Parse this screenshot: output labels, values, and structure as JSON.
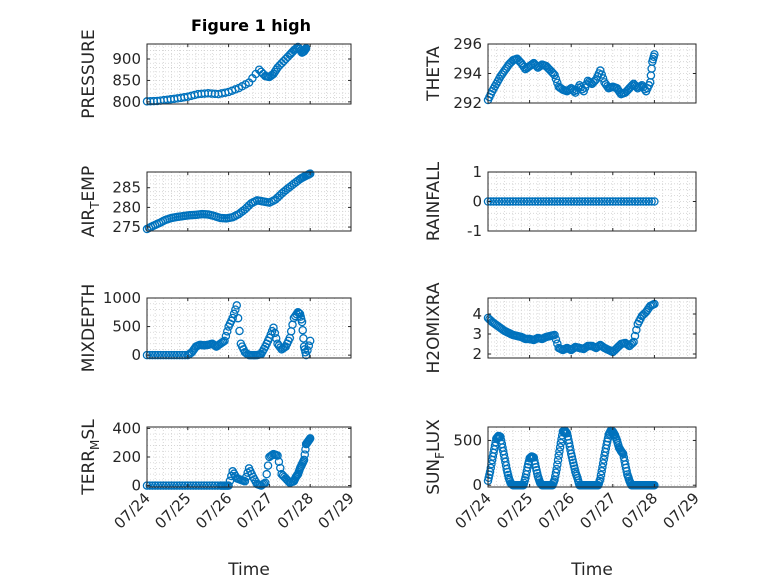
{
  "figure": {
    "title": "Figure 1 high"
  },
  "colors": {
    "marker": "#0072BD",
    "grid": "#d0d0d0",
    "axis": "#262626"
  },
  "chart_data": [
    {
      "id": "pressure",
      "type": "scatter",
      "ylabel": "PRESSURE",
      "title": "Figure 1 high",
      "ylim": [
        795,
        935
      ],
      "yticks": [
        800,
        850,
        900
      ],
      "ytick_labels": [
        "800",
        "850",
        "900"
      ],
      "xlim": [
        0,
        5
      ],
      "xticks": [
        0,
        1,
        2,
        3,
        4,
        5
      ],
      "xtick_labels": [],
      "grid": true,
      "series_x": [
        0,
        0.25,
        0.5,
        0.75,
        1.0,
        1.25,
        1.5,
        1.75,
        2.0,
        2.25,
        2.5,
        2.75,
        2.9,
        3.0,
        3.1,
        3.2,
        3.35,
        3.5,
        3.6,
        3.7,
        3.8,
        3.85,
        3.9
      ],
      "series_y": [
        801,
        802,
        805,
        808,
        812,
        818,
        820,
        818,
        823,
        832,
        845,
        875,
        860,
        858,
        865,
        880,
        895,
        910,
        920,
        928,
        915,
        918,
        925
      ]
    },
    {
      "id": "theta",
      "type": "scatter",
      "ylabel": "THETA",
      "ylim": [
        292,
        296
      ],
      "yticks": [
        292,
        294,
        296
      ],
      "ytick_labels": [
        "292",
        "294",
        "296"
      ],
      "xlim": [
        0,
        5
      ],
      "xticks": [
        0,
        1,
        2,
        3,
        4,
        5
      ],
      "xtick_labels": [],
      "grid": true,
      "series_x": [
        0,
        0.1,
        0.2,
        0.3,
        0.4,
        0.5,
        0.6,
        0.7,
        0.8,
        0.9,
        1.0,
        1.1,
        1.2,
        1.3,
        1.4,
        1.5,
        1.6,
        1.7,
        1.8,
        1.9,
        2.0,
        2.1,
        2.2,
        2.3,
        2.4,
        2.5,
        2.6,
        2.7,
        2.8,
        2.9,
        3.0,
        3.1,
        3.2,
        3.3,
        3.4,
        3.5,
        3.6,
        3.7,
        3.8,
        3.9,
        3.95,
        4.0
      ],
      "series_y": [
        292.2,
        292.8,
        293.3,
        293.8,
        294.2,
        294.6,
        294.9,
        295.0,
        294.7,
        294.3,
        294.5,
        294.7,
        294.4,
        294.6,
        294.5,
        294.2,
        293.9,
        293.1,
        292.9,
        292.8,
        293.0,
        292.7,
        293.2,
        292.8,
        293.5,
        293.3,
        293.6,
        294.2,
        293.4,
        293.0,
        293.1,
        293.0,
        292.6,
        292.7,
        293.0,
        293.3,
        293.0,
        293.2,
        292.8,
        293.4,
        294.8,
        295.3
      ]
    },
    {
      "id": "air_temp",
      "type": "scatter",
      "ylabel": "AIR",
      "ylabel_sub": "T",
      "ylabel_suffix": "EMP",
      "ylim": [
        274,
        289
      ],
      "yticks": [
        275,
        280,
        285
      ],
      "ytick_labels": [
        "275",
        "280",
        "285"
      ],
      "xlim": [
        0,
        5
      ],
      "xticks": [
        0,
        1,
        2,
        3,
        4,
        5
      ],
      "xtick_labels": [],
      "grid": true,
      "series_x": [
        0,
        0.15,
        0.3,
        0.45,
        0.6,
        0.75,
        0.9,
        1.05,
        1.2,
        1.35,
        1.5,
        1.65,
        1.8,
        1.95,
        2.1,
        2.25,
        2.4,
        2.55,
        2.7,
        2.85,
        3.0,
        3.15,
        3.3,
        3.45,
        3.6,
        3.75,
        3.85,
        3.95,
        4.0
      ],
      "series_y": [
        274.5,
        275.3,
        276.0,
        276.8,
        277.3,
        277.6,
        277.8,
        278.0,
        278.1,
        278.3,
        278.2,
        277.8,
        277.3,
        277.2,
        277.5,
        278.3,
        279.5,
        281.0,
        281.8,
        281.5,
        281.2,
        282.0,
        283.5,
        284.8,
        286.0,
        287.2,
        287.8,
        288.3,
        288.6
      ]
    },
    {
      "id": "rainfall",
      "type": "scatter",
      "ylabel": "RAINFALL",
      "ylim": [
        -1,
        1
      ],
      "yticks": [
        -1,
        0,
        1
      ],
      "ytick_labels": [
        "-1",
        "0",
        "1"
      ],
      "xlim": [
        0,
        5
      ],
      "xticks": [
        0,
        1,
        2,
        3,
        4,
        5
      ],
      "xtick_labels": [],
      "grid": true,
      "series_x": [
        0,
        0.2,
        0.4,
        0.6,
        0.8,
        1.0,
        1.2,
        1.4,
        1.6,
        1.8,
        2.0,
        2.2,
        2.4,
        2.6,
        2.8,
        3.0,
        3.2,
        3.4,
        3.6,
        3.8,
        4.0
      ],
      "series_y": [
        0,
        0,
        0,
        0,
        0,
        0,
        0,
        0,
        0,
        0,
        0,
        0,
        0,
        0,
        0,
        0,
        0,
        0,
        0,
        0,
        0
      ]
    },
    {
      "id": "mixdepth",
      "type": "scatter",
      "ylabel": "MIXDEPTH",
      "ylim": [
        -50,
        1000
      ],
      "yticks": [
        0,
        500,
        1000
      ],
      "ytick_labels": [
        "0",
        "500",
        "1000"
      ],
      "xlim": [
        0,
        5
      ],
      "xticks": [
        0,
        1,
        2,
        3,
        4,
        5
      ],
      "xtick_labels": [],
      "grid": true,
      "series_x": [
        0,
        0.2,
        0.4,
        0.6,
        0.8,
        1.0,
        1.1,
        1.2,
        1.3,
        1.4,
        1.5,
        1.6,
        1.7,
        1.8,
        1.9,
        2.0,
        2.1,
        2.2,
        2.3,
        2.4,
        2.5,
        2.6,
        2.7,
        2.8,
        2.9,
        3.0,
        3.1,
        3.2,
        3.3,
        3.4,
        3.5,
        3.6,
        3.7,
        3.75,
        3.8,
        3.85,
        3.9,
        4.0
      ],
      "series_y": [
        0,
        0,
        0,
        0,
        0,
        0,
        50,
        150,
        180,
        170,
        180,
        200,
        150,
        200,
        250,
        500,
        650,
        870,
        200,
        50,
        0,
        0,
        0,
        20,
        150,
        300,
        480,
        200,
        100,
        150,
        300,
        650,
        750,
        720,
        580,
        150,
        0,
        250
      ]
    },
    {
      "id": "h2omixra",
      "type": "scatter",
      "ylabel": "H2OMIXRA",
      "ylim": [
        1.8,
        4.8
      ],
      "yticks": [
        2,
        3,
        4
      ],
      "ytick_labels": [
        "2",
        "3",
        "4"
      ],
      "xlim": [
        0,
        5
      ],
      "xticks": [
        0,
        1,
        2,
        3,
        4,
        5
      ],
      "xtick_labels": [],
      "grid": true,
      "series_x": [
        0,
        0.1,
        0.2,
        0.3,
        0.4,
        0.5,
        0.6,
        0.7,
        0.8,
        0.9,
        1.0,
        1.1,
        1.2,
        1.3,
        1.4,
        1.5,
        1.6,
        1.7,
        1.8,
        1.9,
        2.0,
        2.1,
        2.2,
        2.3,
        2.4,
        2.5,
        2.6,
        2.7,
        2.8,
        2.9,
        3.0,
        3.1,
        3.2,
        3.3,
        3.4,
        3.5,
        3.6,
        3.7,
        3.8,
        3.9,
        4.0
      ],
      "series_y": [
        3.8,
        3.6,
        3.45,
        3.3,
        3.15,
        3.05,
        2.95,
        2.9,
        2.85,
        2.75,
        2.75,
        2.7,
        2.8,
        2.75,
        2.85,
        2.9,
        2.95,
        2.3,
        2.2,
        2.3,
        2.2,
        2.35,
        2.3,
        2.25,
        2.4,
        2.4,
        2.3,
        2.45,
        2.3,
        2.2,
        2.1,
        2.3,
        2.5,
        2.55,
        2.4,
        2.6,
        3.5,
        3.9,
        4.1,
        4.4,
        4.5
      ]
    },
    {
      "id": "terr_msl",
      "type": "scatter",
      "ylabel": "TERR",
      "ylabel_sub": "M",
      "ylabel_suffix": "SL",
      "ylim": [
        -10,
        410
      ],
      "yticks": [
        0,
        200,
        400
      ],
      "ytick_labels": [
        "0",
        "200",
        "400"
      ],
      "xlim": [
        0,
        5
      ],
      "xticks": [
        0,
        1,
        2,
        3,
        4,
        5
      ],
      "xtick_labels": [
        "07/24",
        "07/25",
        "07/26",
        "07/27",
        "07/28",
        "07/29"
      ],
      "xlabel": "Time",
      "grid": true,
      "series_x": [
        0,
        0.2,
        0.4,
        0.6,
        0.8,
        1.0,
        1.2,
        1.4,
        1.6,
        1.8,
        1.9,
        2.0,
        2.1,
        2.2,
        2.3,
        2.4,
        2.5,
        2.6,
        2.7,
        2.8,
        2.9,
        3.0,
        3.1,
        3.2,
        3.3,
        3.4,
        3.5,
        3.6,
        3.65,
        3.7,
        3.75,
        3.8,
        3.85,
        3.9,
        3.95,
        4.0
      ],
      "series_y": [
        0,
        0,
        0,
        0,
        0,
        0,
        0,
        0,
        0,
        0,
        0,
        0,
        100,
        50,
        40,
        30,
        120,
        60,
        10,
        0,
        20,
        200,
        220,
        210,
        80,
        50,
        20,
        30,
        60,
        80,
        120,
        150,
        180,
        290,
        310,
        330
      ]
    },
    {
      "id": "sun_flux",
      "type": "scatter",
      "ylabel": "SUN",
      "ylabel_sub": "F",
      "ylabel_suffix": "LUX",
      "ylim": [
        -20,
        650
      ],
      "yticks": [
        0,
        500
      ],
      "ytick_labels": [
        "0",
        "500"
      ],
      "xlim": [
        0,
        5
      ],
      "xticks": [
        0,
        1,
        2,
        3,
        4,
        5
      ],
      "xtick_labels": [
        "07/24",
        "07/25",
        "07/26",
        "07/27",
        "07/28",
        "07/29"
      ],
      "xlabel": "Time",
      "grid": true,
      "series_x": [
        0,
        0.05,
        0.1,
        0.15,
        0.2,
        0.25,
        0.3,
        0.35,
        0.4,
        0.45,
        0.5,
        0.55,
        0.6,
        0.65,
        0.7,
        0.75,
        0.8,
        0.85,
        0.9,
        0.95,
        1.0,
        1.05,
        1.1,
        1.15,
        1.2,
        1.25,
        1.3,
        1.35,
        1.4,
        1.45,
        1.5,
        1.55,
        1.6,
        1.65,
        1.7,
        1.75,
        1.8,
        1.85,
        1.9,
        1.95,
        2.0,
        2.05,
        2.1,
        2.15,
        2.2,
        2.25,
        2.3,
        2.35,
        2.4,
        2.45,
        2.5,
        2.55,
        2.6,
        2.65,
        2.7,
        2.75,
        2.8,
        2.85,
        2.9,
        2.95,
        3.0,
        3.05,
        3.1,
        3.15,
        3.2,
        3.25,
        3.3,
        3.35,
        3.4,
        3.45,
        3.5,
        3.55,
        3.6,
        3.65,
        3.7,
        3.75,
        3.8,
        3.85,
        3.9,
        3.95,
        4.0
      ],
      "series_y": [
        50,
        150,
        280,
        400,
        520,
        550,
        540,
        420,
        300,
        180,
        80,
        20,
        0,
        0,
        0,
        0,
        0,
        0,
        80,
        200,
        300,
        320,
        310,
        200,
        100,
        30,
        0,
        0,
        0,
        0,
        0,
        0,
        60,
        180,
        330,
        470,
        600,
        610,
        580,
        470,
        350,
        250,
        150,
        80,
        0,
        0,
        0,
        0,
        0,
        0,
        0,
        0,
        0,
        0,
        70,
        200,
        330,
        450,
        560,
        610,
        600,
        560,
        500,
        420,
        380,
        350,
        230,
        120,
        50,
        0,
        0,
        0,
        0,
        0,
        0,
        0,
        0,
        0,
        0,
        0,
        0
      ]
    }
  ]
}
